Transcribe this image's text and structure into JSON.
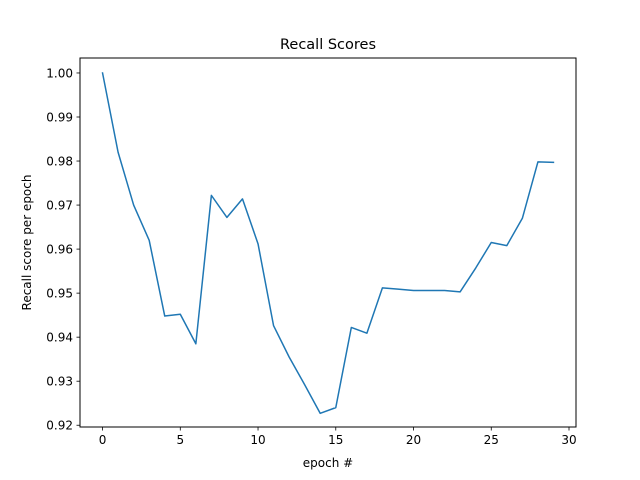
{
  "chart_data": {
    "type": "line",
    "title": "Recall Scores",
    "xlabel": "epoch #",
    "ylabel": "Recall score per epoch",
    "xlim": [
      -1.45,
      30.45
    ],
    "ylim": [
      0.9196,
      1.0034
    ],
    "xticks": [
      0,
      5,
      10,
      15,
      20,
      25,
      30
    ],
    "xtick_labels": [
      "0",
      "5",
      "10",
      "15",
      "20",
      "25",
      "30"
    ],
    "yticks": [
      0.92,
      0.93,
      0.94,
      0.95,
      0.96,
      0.97,
      0.98,
      0.99,
      1.0
    ],
    "ytick_labels": [
      "0.92",
      "0.93",
      "0.94",
      "0.95",
      "0.96",
      "0.97",
      "0.98",
      "0.99",
      "1.00"
    ],
    "grid": false,
    "series": [
      {
        "color": "#1f77b4",
        "x": [
          0,
          1,
          2,
          3,
          4,
          5,
          6,
          7,
          8,
          9,
          10,
          11,
          12,
          13,
          14,
          15,
          16,
          17,
          18,
          19,
          20,
          21,
          22,
          23,
          24,
          25,
          26,
          27,
          28,
          29
        ],
        "y": [
          1.0,
          0.982,
          0.97,
          0.962,
          0.9448,
          0.9452,
          0.9385,
          0.9722,
          0.9672,
          0.9714,
          0.9612,
          0.9426,
          0.9355,
          0.9292,
          0.9227,
          0.924,
          0.9422,
          0.9409,
          0.9512,
          0.9509,
          0.9506,
          0.9506,
          0.9506,
          0.9503,
          0.9557,
          0.9615,
          0.9608,
          0.967,
          0.9798,
          0.9797
        ]
      }
    ]
  }
}
